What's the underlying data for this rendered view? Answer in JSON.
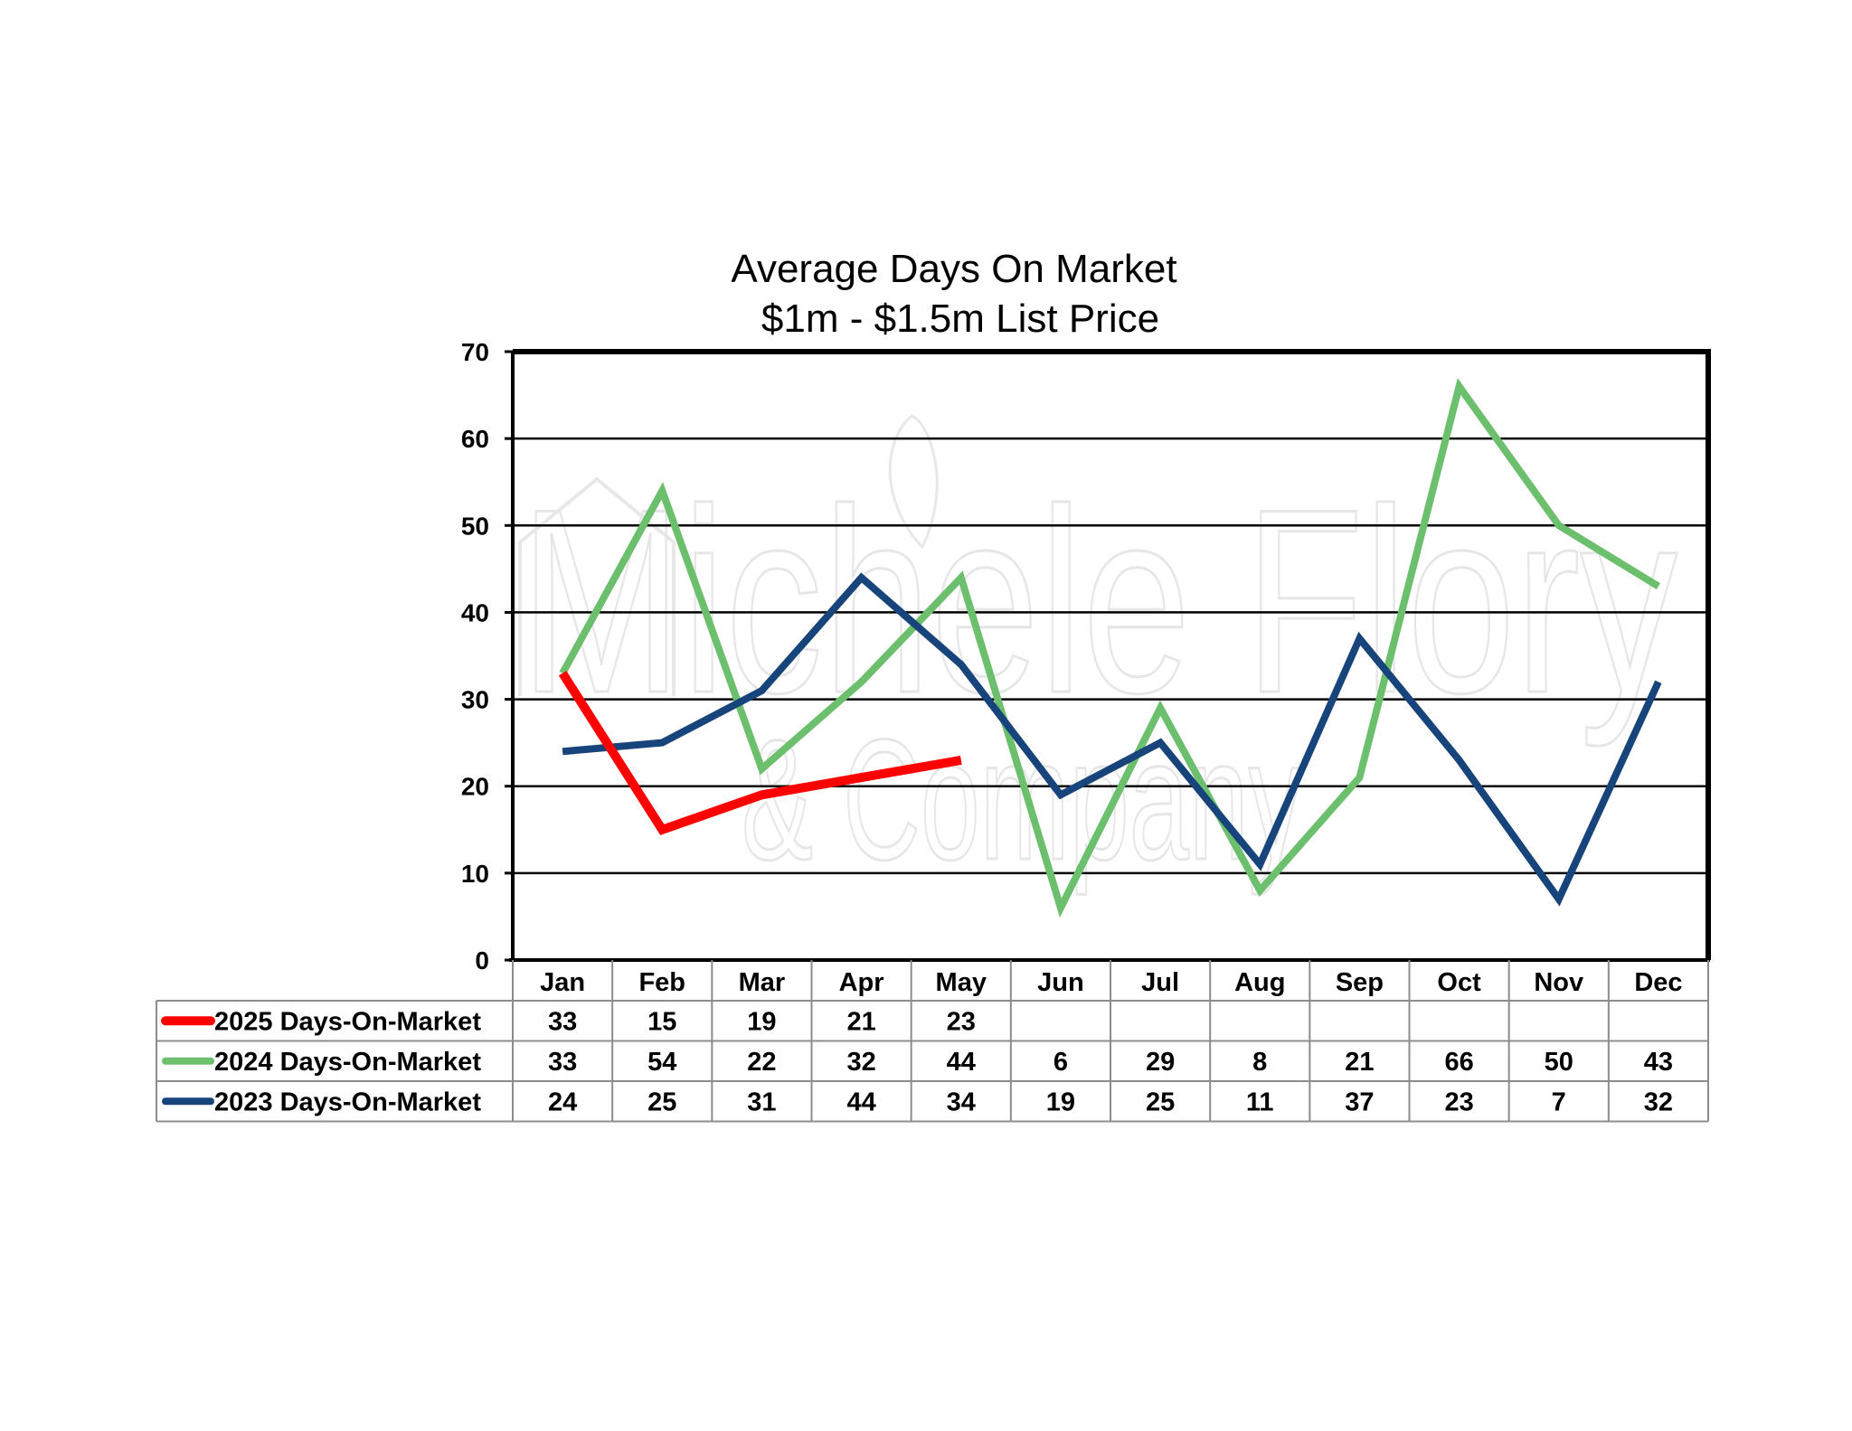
{
  "chart_data": {
    "type": "line",
    "title": "Average Days On Market",
    "subtitle": "$1m - $1.5m List Price",
    "xlabel": "",
    "ylabel": "",
    "categories": [
      "Jan",
      "Feb",
      "Mar",
      "Apr",
      "May",
      "Jun",
      "Jul",
      "Aug",
      "Sep",
      "Oct",
      "Nov",
      "Dec"
    ],
    "ylim": [
      0,
      70
    ],
    "yticks": [
      "0",
      "10",
      "20",
      "30",
      "40",
      "50",
      "60",
      "70"
    ],
    "grid": true,
    "legend": "data-table-below",
    "series": [
      {
        "name": "2025 Days-On-Market",
        "color": "#ff0000",
        "values": [
          33,
          15,
          19,
          21,
          23,
          null,
          null,
          null,
          null,
          null,
          null,
          null
        ]
      },
      {
        "name": "2024 Days-On-Market",
        "color": "#6cbf6c",
        "values": [
          33,
          54,
          22,
          32,
          44,
          6,
          29,
          8,
          21,
          66,
          50,
          43
        ]
      },
      {
        "name": "2023 Days-On-Market",
        "color": "#17447a",
        "values": [
          24,
          25,
          31,
          44,
          34,
          19,
          25,
          11,
          37,
          23,
          7,
          32
        ]
      }
    ],
    "watermark": {
      "line1": "Michele Flory",
      "line2": "& Company",
      "color": "#e6e6e6"
    }
  }
}
